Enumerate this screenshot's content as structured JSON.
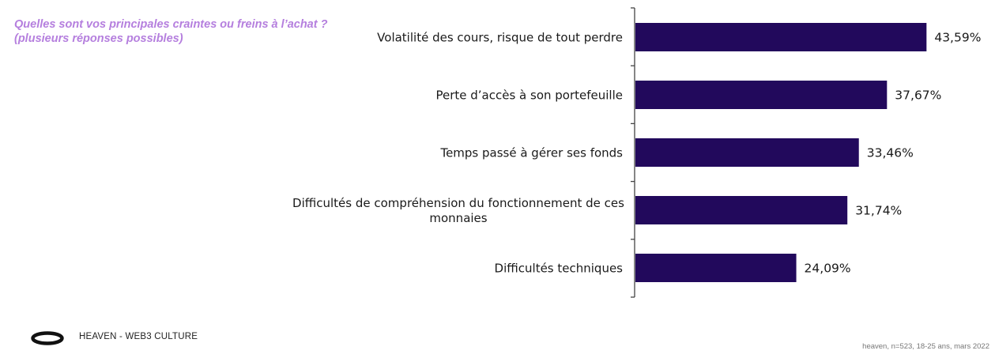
{
  "question": "Quelles sont vos principales craintes ou freins à l’achat ? (plusieurs réponses possibles)",
  "chart_data": {
    "type": "bar",
    "orientation": "horizontal",
    "categories": [
      "Volatilité des cours, risque de tout perdre",
      "Perte d’accès à son portefeuille",
      "Temps passé à gérer ses fonds",
      "Difficultés de compréhension du fonctionnement de ces monnaies",
      "Difficultés techniques"
    ],
    "category_lines": [
      [
        "Volatilité des cours, risque de tout perdre"
      ],
      [
        "Perte d’accès à son portefeuille"
      ],
      [
        "Temps passé à gérer ses fonds"
      ],
      [
        "Difficultés de compréhension du fonctionnement de ces",
        "monnaies"
      ],
      [
        "Difficultés techniques"
      ]
    ],
    "values": [
      43.59,
      37.67,
      33.46,
      31.74,
      24.09
    ],
    "value_labels": [
      "43,59%",
      "37,67%",
      "33,46%",
      "31,74%",
      "24,09%"
    ],
    "xlim": [
      0,
      50
    ],
    "grid": false,
    "legend": "none",
    "bar_color": "#22095c"
  },
  "footer": {
    "brand": "HEAVEN - WEB3 CULTURE",
    "source": "heaven, n=523, 18-25 ans, mars 2022",
    "logo_icon": "ring-logo-icon"
  },
  "colors": {
    "question": "#b57fde",
    "bar": "#22095c",
    "axis": "#444444",
    "text": "#1a1a1a"
  }
}
